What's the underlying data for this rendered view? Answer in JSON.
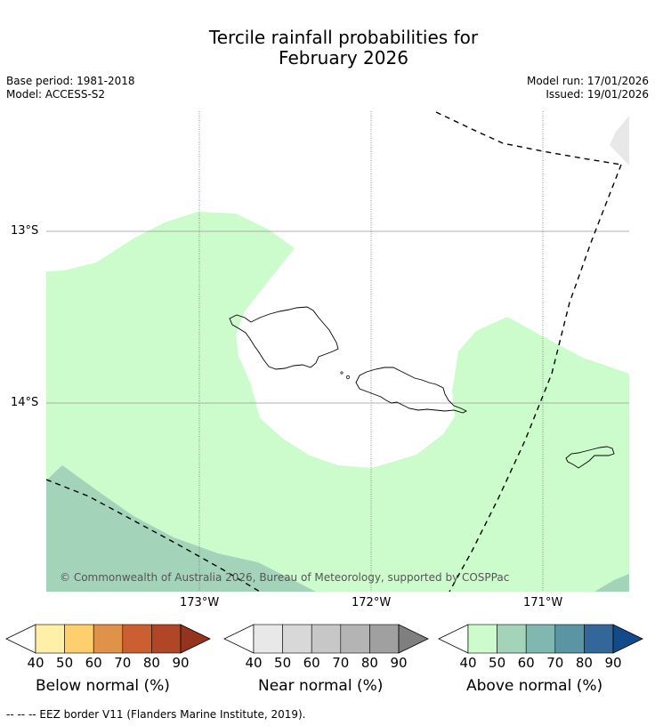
{
  "title": {
    "line1": "Tercile rainfall probabilities for",
    "line2": "February 2026"
  },
  "meta": {
    "base_period": "Base period: 1981-2018",
    "model": "Model: ACCESS-S2",
    "model_run": "Model run: 17/01/2026",
    "issued": "Issued: 19/01/2026"
  },
  "map": {
    "lat_labels": [
      "13°S",
      "14°S"
    ],
    "lon_labels": [
      "173°W",
      "172°W",
      "171°W"
    ],
    "copyright": "© Commonwealth of Australia 2026, Bureau of Meteorology, supported by COSPPac"
  },
  "colorbars": [
    {
      "name": "below",
      "title": "Below normal (%)",
      "ticks": [
        "40",
        "50",
        "60",
        "70",
        "80",
        "90"
      ],
      "colors": [
        "#fef0a9",
        "#fecf6c",
        "#e1924a",
        "#cc5f31",
        "#b14627",
        "#94341f"
      ]
    },
    {
      "name": "near",
      "title": "Near normal (%)",
      "ticks": [
        "40",
        "50",
        "60",
        "70",
        "80",
        "90"
      ],
      "colors": [
        "#e8e8e8",
        "#d8d8d8",
        "#c7c7c7",
        "#b4b4b4",
        "#a0a0a0",
        "#7f7f7f"
      ]
    },
    {
      "name": "above",
      "title": "Above normal (%)",
      "ticks": [
        "40",
        "50",
        "60",
        "70",
        "80",
        "90"
      ],
      "colors": [
        "#ccfccc",
        "#a3d4ba",
        "#80b7b0",
        "#5b95a3",
        "#336699",
        "#134a8a"
      ]
    }
  ],
  "footer": "--  --  -- EEZ border V11 (Flanders Marine Institute, 2019)."
}
